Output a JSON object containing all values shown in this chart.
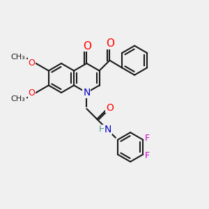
{
  "background_color": "#f0f0f0",
  "bond_color": "#1a1a1a",
  "bond_width": 1.5,
  "atom_colors": {
    "O": "#ff0000",
    "N": "#0000cc",
    "F": "#cc00cc",
    "H": "#4a9a8a",
    "C": "#1a1a1a"
  },
  "font_size": 9,
  "sc": 22
}
